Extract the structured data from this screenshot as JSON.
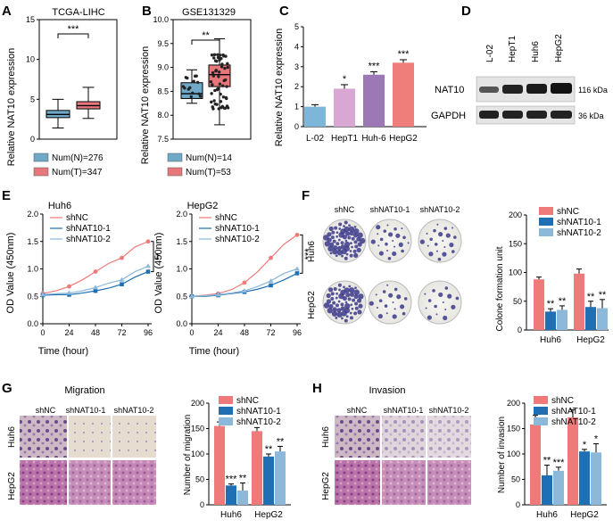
{
  "colors": {
    "normal": "#6FA9C8",
    "tumor": "#E8777B",
    "l02": "#7EB6D9",
    "hept1": "#D8A7D4",
    "huh6": "#9C78B6",
    "hepg2": "#EF7E7B",
    "shNC": "#EE7B79",
    "shNAT10_1": "#1F6FB5",
    "shNAT10_2": "#8CB8DA"
  },
  "panels": {
    "A": {
      "letter": "A",
      "title": "TCGA-LIHC",
      "ylabel": "Relative NAT10 expression",
      "yticks": [
        "0",
        "5",
        "10",
        "15"
      ],
      "sig": "***",
      "legend": [
        "Num(N)=276",
        "Num(T)=347"
      ]
    },
    "B": {
      "letter": "B",
      "title": "GSE131329",
      "ylabel": "Relative NAT10 expression",
      "yticks": [
        "7.5",
        "8.0",
        "8.5",
        "9.0",
        "9.5",
        "10.0"
      ],
      "sig": "**",
      "legend": [
        "Num(N)=14",
        "Num(T)=53"
      ]
    },
    "C": {
      "letter": "C",
      "ylabel": "Relative NAT10 expression",
      "yticks": [
        "0",
        "1",
        "2",
        "3",
        "4",
        "5"
      ]
    },
    "D": {
      "letter": "D",
      "lanes": [
        "L-02",
        "HepT1",
        "Huh6",
        "HepG2"
      ],
      "rows": [
        "NAT10",
        "GAPDH"
      ],
      "sizes": [
        "116 kDa",
        "36 kDa"
      ]
    },
    "E": {
      "letter": "E",
      "titles": [
        "Huh6",
        "HepG2"
      ],
      "ylabel": "OD Value (450nm)",
      "xlabel": "Time (hour)",
      "xticks": [
        "0",
        "24",
        "48",
        "72",
        "96"
      ],
      "yticks": [
        "0.0",
        "0.5",
        "1.0",
        "1.5",
        "2.0"
      ],
      "legend": [
        "shNC",
        "shNAT10-1",
        "shNAT10-2"
      ],
      "sigs": [
        "**",
        "***"
      ]
    },
    "F": {
      "letter": "F",
      "cols": [
        "shNC",
        "shNAT10-1",
        "shNAT10-2"
      ],
      "rows": [
        "Huh6",
        "HepG2"
      ],
      "ylabel": "Colone formation unit",
      "yticks": [
        "0",
        "50",
        "100",
        "150",
        "200"
      ],
      "groups": [
        "Huh6",
        "HepG2"
      ],
      "legend": [
        "shNC",
        "shNAT10-1",
        "shNAT10-2"
      ]
    },
    "G": {
      "letter": "G",
      "title": "Migration",
      "cols": [
        "shNC",
        "shNAT10-1",
        "shNAT10-2"
      ],
      "rows": [
        "Huh6",
        "HepG2"
      ],
      "ylabel": "Number of migration",
      "yticks": [
        "0",
        "50",
        "100",
        "150",
        "200"
      ],
      "groups": [
        "Huh6",
        "HepG2"
      ],
      "legend": [
        "shNC",
        "shNAT10-1",
        "shNAT10-2"
      ]
    },
    "H": {
      "letter": "H",
      "title": "Invasion",
      "cols": [
        "shNC",
        "shNAT10-1",
        "shNAT10-2"
      ],
      "rows": [
        "Huh6",
        "HepG2"
      ],
      "ylabel": "Number of invasion",
      "yticks": [
        "0",
        "50",
        "100",
        "150",
        "200"
      ],
      "groups": [
        "Huh6",
        "HepG2"
      ],
      "legend": [
        "shNC",
        "shNAT10-1",
        "shNAT10-2"
      ]
    }
  },
  "chart_data": [
    {
      "panel": "A",
      "type": "box",
      "title": "TCGA-LIHC",
      "ylabel": "Relative NAT10 expression",
      "ylim": [
        0,
        15
      ],
      "groups": [
        {
          "name": "Num(N)=276",
          "min": 1.4,
          "q1": 2.7,
          "median": 3.1,
          "q3": 3.6,
          "max": 5.0
        },
        {
          "name": "Num(T)=347",
          "min": 2.6,
          "q1": 3.8,
          "median": 4.2,
          "q3": 4.7,
          "max": 6.5
        }
      ],
      "annotation": "***"
    },
    {
      "panel": "B",
      "type": "box",
      "title": "GSE131329",
      "ylabel": "Relative NAT10 expression",
      "ylim": [
        7.5,
        10
      ],
      "groups": [
        {
          "name": "Num(N)=14",
          "min": 8.25,
          "q1": 8.35,
          "median": 8.45,
          "q3": 8.68,
          "max": 8.95
        },
        {
          "name": "Num(T)=53",
          "min": 7.8,
          "q1": 8.6,
          "median": 8.85,
          "q3": 9.05,
          "max": 9.6
        }
      ],
      "annotation": "**"
    },
    {
      "panel": "C",
      "type": "bar",
      "categories": [
        "L-02",
        "HepT1",
        "Huh-6",
        "HepG2"
      ],
      "values": [
        1.0,
        1.9,
        2.6,
        3.2
      ],
      "errors": [
        0.1,
        0.2,
        0.15,
        0.15
      ],
      "annotations": [
        "",
        "*",
        "***",
        "***"
      ],
      "ylabel": "Relative NAT10 expression",
      "ylim": [
        0,
        5
      ]
    },
    {
      "panel": "E",
      "type": "line",
      "title": "Huh6",
      "x": [
        0,
        12,
        24,
        36,
        48,
        60,
        72,
        84,
        96
      ],
      "series": [
        {
          "name": "shNC",
          "values": [
            0.55,
            0.6,
            0.68,
            0.8,
            0.95,
            1.1,
            1.2,
            1.4,
            1.5
          ]
        },
        {
          "name": "shNAT10-1",
          "values": [
            0.52,
            0.53,
            0.53,
            0.56,
            0.6,
            0.65,
            0.72,
            0.85,
            0.95
          ]
        },
        {
          "name": "shNAT10-2",
          "values": [
            0.53,
            0.55,
            0.56,
            0.6,
            0.66,
            0.74,
            0.8,
            0.95,
            1.05
          ]
        }
      ],
      "xlabel": "Time (hour)",
      "ylabel": "OD Value (450nm)",
      "ylim": [
        0,
        2
      ],
      "annotation": "**"
    },
    {
      "panel": "E",
      "type": "line",
      "title": "HepG2",
      "x": [
        0,
        12,
        24,
        36,
        48,
        60,
        72,
        84,
        96
      ],
      "series": [
        {
          "name": "shNC",
          "values": [
            0.5,
            0.52,
            0.55,
            0.62,
            0.75,
            0.95,
            1.2,
            1.45,
            1.62
          ]
        },
        {
          "name": "shNAT10-1",
          "values": [
            0.5,
            0.5,
            0.52,
            0.55,
            0.58,
            0.63,
            0.7,
            0.8,
            0.92
          ]
        },
        {
          "name": "shNAT10-2",
          "values": [
            0.5,
            0.51,
            0.53,
            0.56,
            0.6,
            0.68,
            0.78,
            0.92,
            1.0
          ]
        }
      ],
      "xlabel": "Time (hour)",
      "ylabel": "OD Value (450nm)",
      "ylim": [
        0,
        2
      ],
      "annotation": "***"
    },
    {
      "panel": "F",
      "type": "bar",
      "categories": [
        "Huh6",
        "HepG2"
      ],
      "series": [
        {
          "name": "shNC",
          "values": [
            88,
            98
          ],
          "errors": [
            4,
            8
          ]
        },
        {
          "name": "shNAT10-1",
          "values": [
            32,
            40
          ],
          "errors": [
            5,
            10
          ]
        },
        {
          "name": "shNAT10-2",
          "values": [
            35,
            38
          ],
          "errors": [
            7,
            15
          ]
        }
      ],
      "annotations": [
        [
          "",
          "**",
          "**"
        ],
        [
          "",
          "**",
          "**"
        ]
      ],
      "ylabel": "Colone formation unit",
      "ylim": [
        0,
        200
      ]
    },
    {
      "panel": "G",
      "type": "bar",
      "categories": [
        "Huh6",
        "HepG2"
      ],
      "series": [
        {
          "name": "shNC",
          "values": [
            155,
            145
          ],
          "errors": [
            8,
            7
          ]
        },
        {
          "name": "shNAT10-1",
          "values": [
            38,
            95
          ],
          "errors": [
            3,
            5
          ]
        },
        {
          "name": "shNAT10-2",
          "values": [
            28,
            105
          ],
          "errors": [
            15,
            10
          ]
        }
      ],
      "annotations": [
        [
          "",
          "***",
          "**"
        ],
        [
          "",
          "**",
          "**"
        ]
      ],
      "ylabel": "Number of migration",
      "ylim": [
        0,
        200
      ]
    },
    {
      "panel": "H",
      "type": "bar",
      "categories": [
        "Huh6",
        "HepG2"
      ],
      "series": [
        {
          "name": "shNC",
          "values": [
            158,
            172
          ],
          "errors": [
            18,
            15
          ]
        },
        {
          "name": "shNAT10-1",
          "values": [
            58,
            105
          ],
          "errors": [
            20,
            4
          ]
        },
        {
          "name": "shNAT10-2",
          "values": [
            67,
            103
          ],
          "errors": [
            7,
            17
          ]
        }
      ],
      "annotations": [
        [
          "",
          "**",
          "***"
        ],
        [
          "",
          "*",
          "*"
        ]
      ],
      "ylabel": "Number of invasion",
      "ylim": [
        0,
        200
      ]
    }
  ]
}
